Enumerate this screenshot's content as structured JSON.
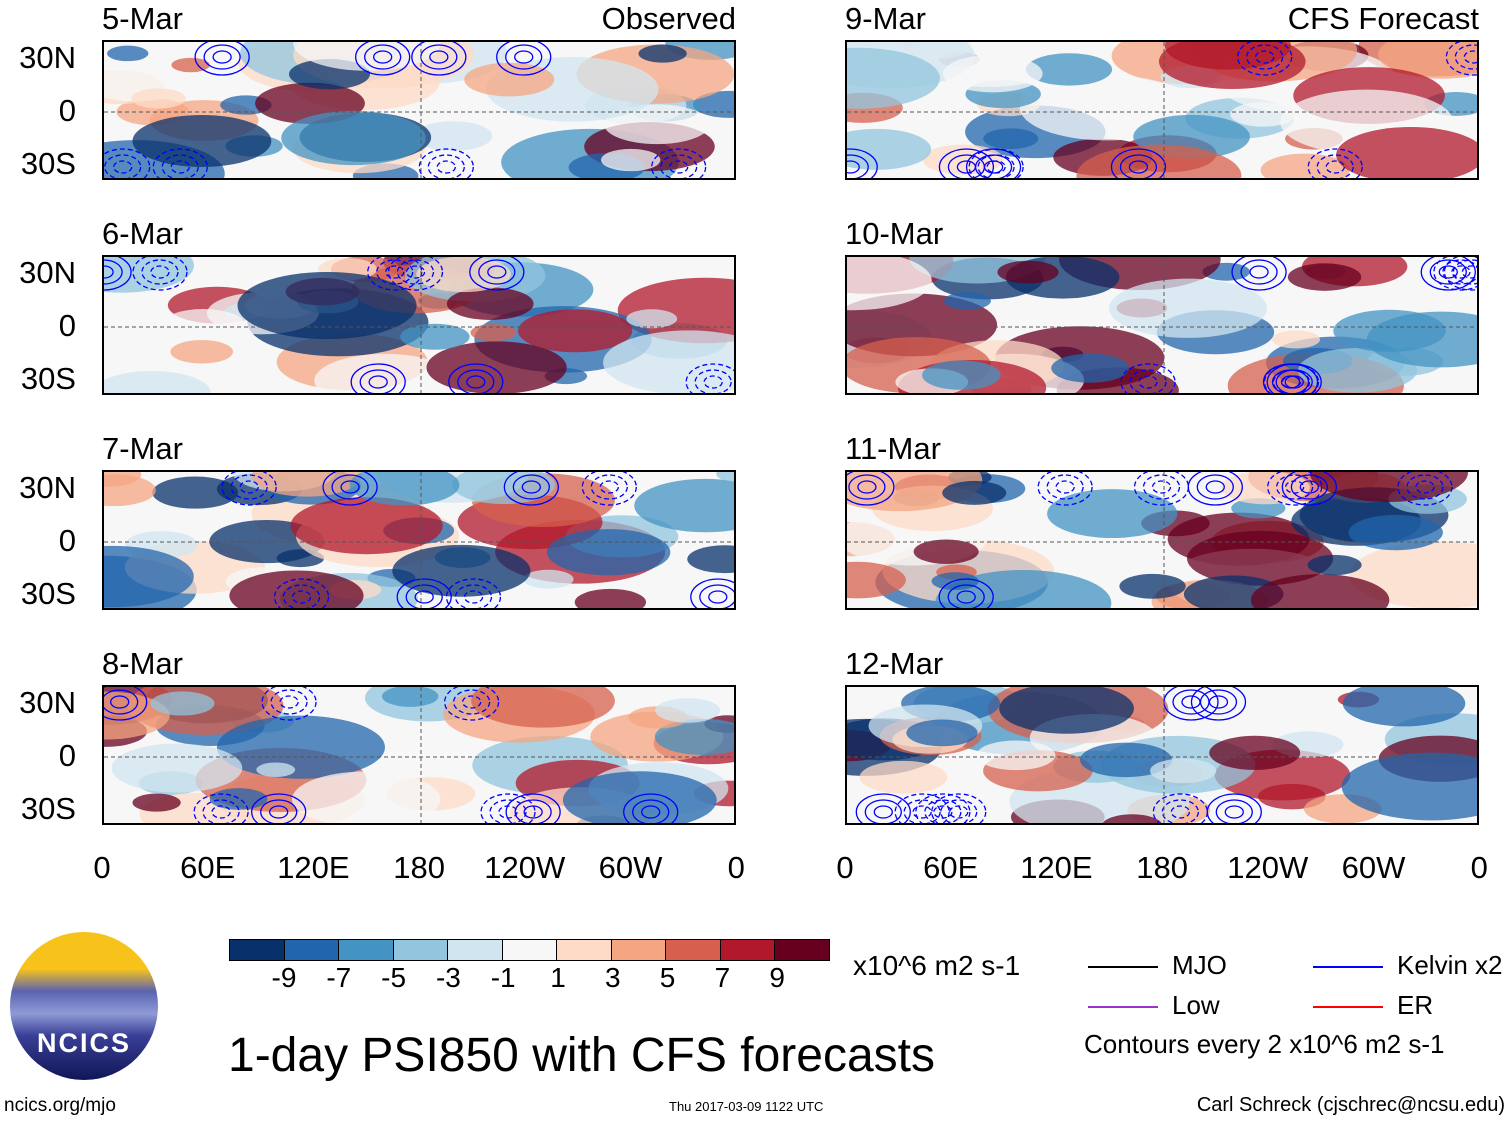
{
  "columns": [
    {
      "label": "Observed",
      "panels": [
        "5-Mar",
        "6-Mar",
        "7-Mar",
        "8-Mar"
      ]
    },
    {
      "label": "CFS Forecast",
      "panels": [
        "9-Mar",
        "10-Mar",
        "11-Mar",
        "12-Mar"
      ]
    }
  ],
  "lat_labels": [
    "30N",
    "0",
    "30S"
  ],
  "lon_labels": [
    "0",
    "60E",
    "120E",
    "180",
    "120W",
    "60W",
    "0"
  ],
  "colorbar": {
    "colors": [
      "#08306b",
      "#2166ac",
      "#4393c3",
      "#92c5de",
      "#d1e5f0",
      "#f7f7f7",
      "#fddbc7",
      "#f4a582",
      "#d6604d",
      "#b2182b",
      "#67001f"
    ],
    "labels": [
      "-9",
      "-7",
      "-5",
      "-3",
      "-1",
      "1",
      "3",
      "5",
      "7",
      "9"
    ],
    "units": "x10^6 m2 s-1"
  },
  "legend": [
    {
      "label": "MJO",
      "color": "#000000"
    },
    {
      "label": "Kelvin x2",
      "color": "#0000ff"
    },
    {
      "label": "Low",
      "color": "#9933cc"
    },
    {
      "label": "ER",
      "color": "#ff0000"
    }
  ],
  "contour_note": "Contours every 2 x10^6 m2 s-1",
  "title": "1-day PSI850 with CFS forecasts",
  "logo_text": "NCICS",
  "footer": {
    "left": "ncics.org/mjo",
    "center": "Thu 2017-03-09 1122 UTC",
    "right": "Carl Schreck (cjschrec@ncsu.edu)"
  }
}
